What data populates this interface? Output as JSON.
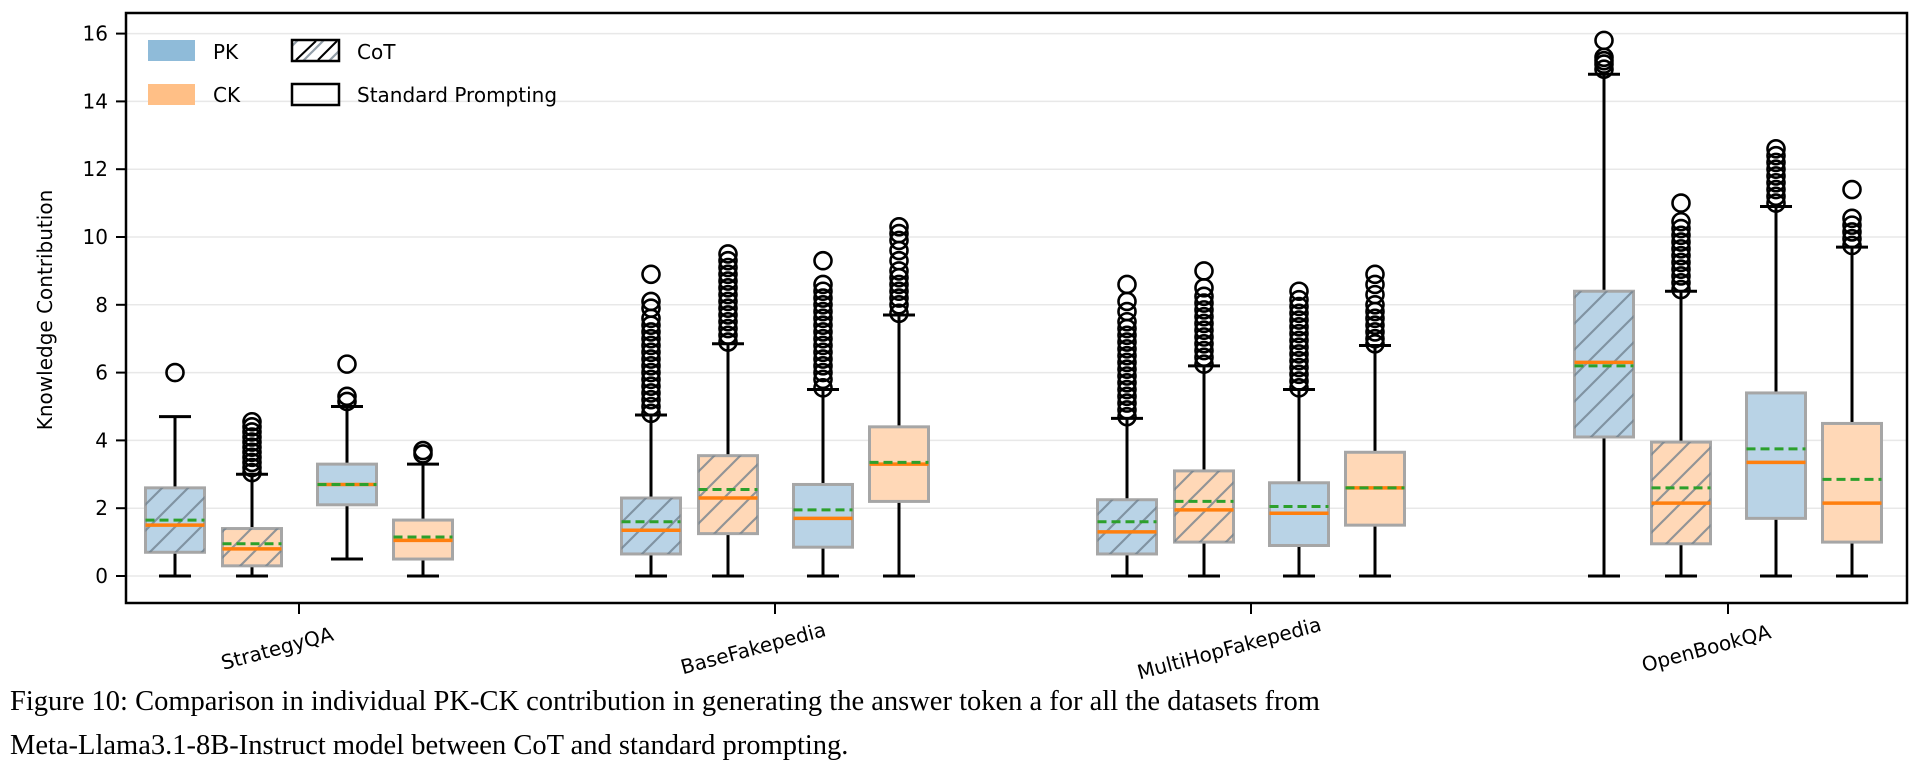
{
  "chart_data": {
    "type": "box",
    "ylabel": "Knowledge Contribution",
    "xlabel": "",
    "ylim": [
      -0.8,
      16.5
    ],
    "yticks": [
      0,
      2,
      4,
      6,
      8,
      10,
      12,
      14,
      16
    ],
    "grid": "horizontal",
    "legend_position": "top-left",
    "legend": {
      "colors": [
        {
          "label": "PK",
          "color": "#8fbbd9"
        },
        {
          "label": "CK",
          "color": "#ffbf86"
        }
      ],
      "styles": [
        {
          "label": "CoT",
          "hatch": true
        },
        {
          "label": "Standard Prompting",
          "hatch": false
        }
      ]
    },
    "colors": {
      "PK": "#1f77b4",
      "CK": "#ff7f0e",
      "median": "#ff7f0e",
      "mean": "#2ca02c"
    },
    "categories": [
      "StrategyQA",
      "BaseFakepedia",
      "MultiHopFakepedia",
      "OpenBookQA"
    ],
    "series_order": [
      {
        "name": "PK CoT",
        "knowledge": "PK",
        "prompting": "CoT"
      },
      {
        "name": "CK CoT",
        "knowledge": "CK",
        "prompting": "CoT"
      },
      {
        "name": "PK Standard",
        "knowledge": "PK",
        "prompting": "Standard Prompting"
      },
      {
        "name": "CK Standard",
        "knowledge": "CK",
        "prompting": "Standard Prompting"
      }
    ],
    "boxes": [
      [
        {
          "whislo": 0,
          "q1": 0.7,
          "med": 1.5,
          "mean": 1.65,
          "q3": 2.6,
          "whishi": 4.7,
          "fliers": [
            6.0
          ]
        },
        {
          "whislo": 0,
          "q1": 0.3,
          "med": 0.8,
          "mean": 0.95,
          "q3": 1.4,
          "whishi": 3.0,
          "fliers": [
            3.05,
            3.2,
            3.35,
            3.5,
            3.65,
            3.8,
            3.95,
            4.1,
            4.25,
            4.4,
            4.55
          ]
        },
        {
          "whislo": 0.5,
          "q1": 2.1,
          "med": 2.7,
          "mean": 2.7,
          "q3": 3.3,
          "whishi": 5.0,
          "fliers": [
            5.15,
            5.3,
            6.25
          ]
        },
        {
          "whislo": 0,
          "q1": 0.5,
          "med": 1.05,
          "mean": 1.15,
          "q3": 1.65,
          "whishi": 3.3,
          "fliers": [
            3.6,
            3.7
          ]
        }
      ],
      [
        {
          "whislo": 0,
          "q1": 0.65,
          "med": 1.35,
          "mean": 1.6,
          "q3": 2.3,
          "whishi": 4.75,
          "fliers": [
            4.8,
            5.0,
            5.2,
            5.4,
            5.6,
            5.8,
            6.0,
            6.2,
            6.4,
            6.6,
            6.8,
            7.0,
            7.2,
            7.4,
            7.6,
            7.9,
            8.1,
            8.9
          ]
        },
        {
          "whislo": 0,
          "q1": 1.25,
          "med": 2.3,
          "mean": 2.55,
          "q3": 3.55,
          "whishi": 6.85,
          "fliers": [
            6.9,
            7.1,
            7.3,
            7.5,
            7.7,
            7.9,
            8.1,
            8.3,
            8.5,
            8.7,
            8.9,
            9.1,
            9.3,
            9.5
          ]
        },
        {
          "whislo": 0,
          "q1": 0.85,
          "med": 1.7,
          "mean": 1.95,
          "q3": 2.7,
          "whishi": 5.5,
          "fliers": [
            5.55,
            5.8,
            6.0,
            6.2,
            6.4,
            6.6,
            6.8,
            7.0,
            7.2,
            7.4,
            7.6,
            7.8,
            8.0,
            8.2,
            8.4,
            8.6,
            9.3
          ]
        },
        {
          "whislo": 0,
          "q1": 2.2,
          "med": 3.3,
          "mean": 3.35,
          "q3": 4.4,
          "whishi": 7.7,
          "fliers": [
            7.75,
            8.0,
            8.2,
            8.4,
            8.6,
            8.8,
            9.0,
            9.3,
            9.6,
            9.9,
            10.1,
            10.3
          ]
        }
      ],
      [
        {
          "whislo": 0,
          "q1": 0.65,
          "med": 1.3,
          "mean": 1.6,
          "q3": 2.25,
          "whishi": 4.65,
          "fliers": [
            4.7,
            4.9,
            5.1,
            5.3,
            5.5,
            5.7,
            5.9,
            6.1,
            6.3,
            6.5,
            6.7,
            6.9,
            7.1,
            7.3,
            7.5,
            7.8,
            8.1,
            8.6
          ]
        },
        {
          "whislo": 0,
          "q1": 1.0,
          "med": 1.95,
          "mean": 2.2,
          "q3": 3.1,
          "whishi": 6.2,
          "fliers": [
            6.25,
            6.45,
            6.65,
            6.85,
            7.05,
            7.25,
            7.45,
            7.65,
            7.85,
            8.05,
            8.25,
            8.5,
            9.0
          ]
        },
        {
          "whislo": 0,
          "q1": 0.9,
          "med": 1.85,
          "mean": 2.05,
          "q3": 2.75,
          "whishi": 5.5,
          "fliers": [
            5.55,
            5.75,
            5.95,
            6.15,
            6.35,
            6.55,
            6.75,
            6.95,
            7.15,
            7.35,
            7.55,
            7.75,
            7.95,
            8.15,
            8.4
          ]
        },
        {
          "whislo": 0,
          "q1": 1.5,
          "med": 2.6,
          "mean": 2.6,
          "q3": 3.65,
          "whishi": 6.8,
          "fliers": [
            6.85,
            7.0,
            7.2,
            7.4,
            7.6,
            7.8,
            8.0,
            8.3,
            8.6,
            8.9
          ]
        }
      ],
      [
        {
          "whislo": 0,
          "q1": 4.1,
          "med": 6.3,
          "mean": 6.2,
          "q3": 8.4,
          "whishi": 14.8,
          "fliers": [
            14.95,
            15.1,
            15.2,
            15.3,
            15.8
          ]
        },
        {
          "whislo": 0,
          "q1": 0.95,
          "med": 2.15,
          "mean": 2.6,
          "q3": 3.95,
          "whishi": 8.4,
          "fliers": [
            8.45,
            8.65,
            8.85,
            9.05,
            9.25,
            9.45,
            9.65,
            9.85,
            10.05,
            10.25,
            10.45,
            11.0
          ]
        },
        {
          "whislo": 0,
          "q1": 1.7,
          "med": 3.35,
          "mean": 3.75,
          "q3": 5.4,
          "whishi": 10.9,
          "fliers": [
            11.0,
            11.2,
            11.4,
            11.6,
            11.8,
            12.0,
            12.2,
            12.4,
            12.6
          ]
        },
        {
          "whislo": 0,
          "q1": 1.0,
          "med": 2.15,
          "mean": 2.85,
          "q3": 4.5,
          "whishi": 9.7,
          "fliers": [
            9.75,
            9.95,
            10.15,
            10.35,
            10.55,
            11.4
          ]
        }
      ]
    ]
  },
  "caption": {
    "line1": "Figure 10: Comparison in individual PK-CK contribution in generating the answer token a for all the datasets from",
    "line2": "Meta-Llama3.1-8B-Instruct model between CoT and standard prompting."
  }
}
